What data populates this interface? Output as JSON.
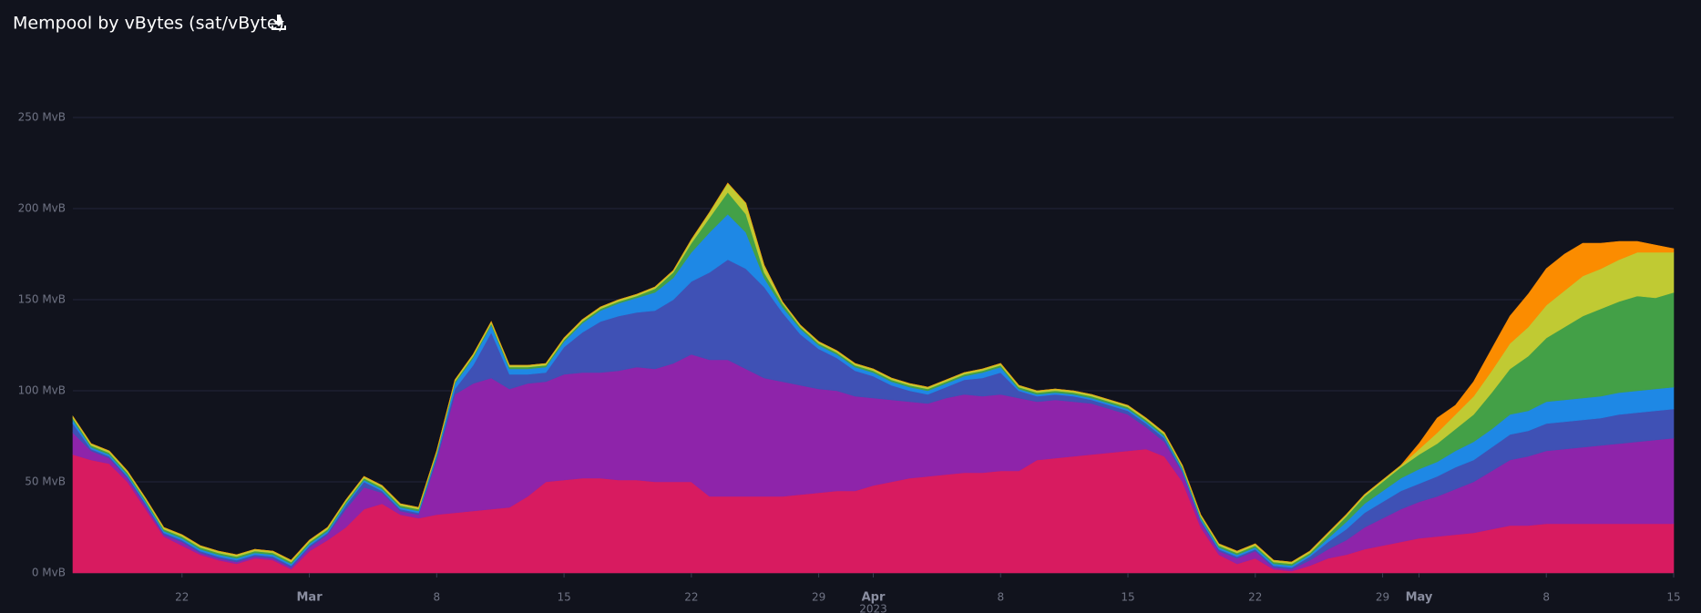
{
  "chart_data": {
    "type": "stacked_area",
    "title": "Mempool by vBytes (sat/vByte)",
    "x": [
      "2023-02-16",
      "2023-02-17",
      "2023-02-18",
      "2023-02-19",
      "2023-02-20",
      "2023-02-21",
      "2023-02-22",
      "2023-02-23",
      "2023-02-24",
      "2023-02-25",
      "2023-02-26",
      "2023-02-27",
      "2023-02-28",
      "2023-03-01",
      "2023-03-02",
      "2023-03-03",
      "2023-03-04",
      "2023-03-05",
      "2023-03-06",
      "2023-03-07",
      "2023-03-08",
      "2023-03-09",
      "2023-03-10",
      "2023-03-11",
      "2023-03-12",
      "2023-03-13",
      "2023-03-14",
      "2023-03-15",
      "2023-03-16",
      "2023-03-17",
      "2023-03-18",
      "2023-03-19",
      "2023-03-20",
      "2023-03-21",
      "2023-03-22",
      "2023-03-23",
      "2023-03-24",
      "2023-03-25",
      "2023-03-26",
      "2023-03-27",
      "2023-03-28",
      "2023-03-29",
      "2023-03-30",
      "2023-03-31",
      "2023-04-01",
      "2023-04-02",
      "2023-04-03",
      "2023-04-04",
      "2023-04-05",
      "2023-04-06",
      "2023-04-07",
      "2023-04-08",
      "2023-04-09",
      "2023-04-10",
      "2023-04-11",
      "2023-04-12",
      "2023-04-13",
      "2023-04-14",
      "2023-04-15",
      "2023-04-16",
      "2023-04-17",
      "2023-04-18",
      "2023-04-19",
      "2023-04-20",
      "2023-04-21",
      "2023-04-22",
      "2023-04-23",
      "2023-04-24",
      "2023-04-25",
      "2023-04-26",
      "2023-04-27",
      "2023-04-28",
      "2023-04-29",
      "2023-04-30",
      "2023-05-01",
      "2023-05-02",
      "2023-05-03",
      "2023-05-04",
      "2023-05-05",
      "2023-05-06",
      "2023-05-07",
      "2023-05-08",
      "2023-05-09",
      "2023-05-10",
      "2023-05-11",
      "2023-05-12",
      "2023-05-13",
      "2023-05-14",
      "2023-05-15"
    ],
    "series": [
      {
        "color": "#d81b60",
        "values": [
          65,
          62,
          60,
          50,
          35,
          20,
          15,
          10,
          7,
          5,
          8,
          7,
          2,
          12,
          18,
          25,
          35,
          38,
          32,
          30,
          32,
          33,
          34,
          35,
          36,
          42,
          50,
          51,
          52,
          52,
          51,
          51,
          50,
          50,
          50,
          42,
          42,
          42,
          42,
          42,
          43,
          44,
          45,
          45,
          48,
          50,
          52,
          53,
          54,
          55,
          55,
          56,
          56,
          62,
          63,
          64,
          65,
          66,
          67,
          68,
          64,
          50,
          25,
          10,
          5,
          8,
          2,
          1,
          4,
          8,
          10,
          13,
          15,
          17,
          19,
          20,
          21,
          22,
          24,
          26,
          26,
          27,
          27,
          27,
          27,
          27,
          27,
          27,
          27
        ]
      },
      {
        "color": "#8e24aa",
        "values": [
          12,
          5,
          3,
          2,
          2,
          1,
          2,
          1,
          1,
          1,
          1,
          1,
          1,
          2,
          3,
          10,
          12,
          6,
          2,
          2,
          30,
          65,
          70,
          72,
          65,
          62,
          55,
          58,
          58,
          58,
          60,
          62,
          62,
          65,
          70,
          75,
          75,
          70,
          65,
          63,
          60,
          57,
          55,
          52,
          48,
          45,
          42,
          40,
          42,
          43,
          42,
          42,
          40,
          32,
          32,
          30,
          28,
          24,
          20,
          12,
          8,
          5,
          3,
          2,
          3,
          4,
          1,
          1,
          3,
          5,
          8,
          12,
          15,
          18,
          20,
          22,
          25,
          28,
          32,
          36,
          38,
          40,
          41,
          42,
          43,
          44,
          45,
          46,
          47
        ]
      },
      {
        "color": "#3f51b5",
        "values": [
          5,
          1,
          1,
          1,
          1,
          1,
          1,
          1,
          1,
          1,
          1,
          1,
          1,
          1,
          1,
          2,
          3,
          1,
          1,
          1,
          2,
          3,
          10,
          25,
          8,
          5,
          5,
          15,
          22,
          28,
          30,
          30,
          32,
          35,
          40,
          48,
          55,
          55,
          50,
          38,
          28,
          22,
          18,
          14,
          12,
          8,
          6,
          5,
          6,
          8,
          10,
          12,
          4,
          3,
          3,
          3,
          2,
          2,
          2,
          2,
          2,
          1,
          1,
          1,
          1,
          1,
          1,
          1,
          2,
          4,
          6,
          8,
          9,
          10,
          10,
          11,
          12,
          12,
          13,
          14,
          14,
          15,
          15,
          15,
          15,
          16,
          16,
          16,
          16
        ]
      },
      {
        "color": "#1e88e5",
        "values": [
          2,
          1,
          1,
          1,
          1,
          1,
          1,
          1,
          1,
          1,
          1,
          1,
          1,
          1,
          1,
          1,
          1,
          1,
          1,
          1,
          1,
          3,
          4,
          4,
          3,
          3,
          3,
          3,
          5,
          6,
          7,
          8,
          10,
          12,
          16,
          22,
          25,
          20,
          5,
          3,
          3,
          2,
          2,
          2,
          2,
          2,
          2,
          2,
          2,
          2,
          3,
          3,
          1,
          1,
          1,
          1,
          1,
          1,
          1,
          1,
          1,
          1,
          1,
          1,
          1,
          1,
          1,
          1,
          1,
          2,
          4,
          5,
          6,
          7,
          8,
          8,
          9,
          10,
          10,
          11,
          11,
          12,
          12,
          12,
          12,
          12,
          12,
          12,
          12
        ]
      },
      {
        "color": "#43a047",
        "values": [
          1,
          1,
          1,
          1,
          1,
          1,
          1,
          1,
          1,
          1,
          1,
          1,
          1,
          1,
          1,
          1,
          1,
          1,
          1,
          1,
          1,
          1,
          1,
          1,
          1,
          1,
          1,
          1,
          1,
          1,
          1,
          1,
          2,
          3,
          5,
          8,
          12,
          10,
          3,
          2,
          1,
          1,
          1,
          1,
          1,
          1,
          1,
          1,
          1,
          1,
          1,
          1,
          1,
          1,
          1,
          1,
          1,
          1,
          1,
          1,
          1,
          1,
          1,
          1,
          1,
          1,
          1,
          1,
          1,
          2,
          3,
          4,
          5,
          6,
          8,
          10,
          12,
          15,
          20,
          25,
          30,
          35,
          40,
          45,
          48,
          50,
          52,
          50,
          52
        ]
      },
      {
        "color": "#c0ca33",
        "values": [
          1,
          1,
          1,
          1,
          1,
          1,
          1,
          1,
          1,
          1,
          1,
          1,
          1,
          1,
          1,
          1,
          1,
          1,
          1,
          1,
          1,
          1,
          1,
          1,
          1,
          1,
          1,
          1,
          1,
          1,
          1,
          1,
          1,
          1,
          2,
          3,
          5,
          6,
          4,
          1,
          1,
          1,
          1,
          1,
          1,
          1,
          1,
          1,
          1,
          1,
          1,
          1,
          1,
          1,
          1,
          1,
          1,
          1,
          1,
          1,
          1,
          1,
          1,
          1,
          1,
          1,
          1,
          1,
          1,
          1,
          1,
          1,
          1,
          1,
          3,
          6,
          8,
          10,
          12,
          14,
          16,
          18,
          20,
          22,
          22,
          23,
          24,
          25,
          22
        ]
      },
      {
        "color": "#fb8c00",
        "values": [
          0,
          0,
          0,
          0,
          0,
          0,
          0,
          0,
          0,
          0,
          0,
          0,
          0,
          0,
          0,
          0,
          0,
          0,
          0,
          0,
          0,
          0,
          0,
          0,
          0,
          0,
          0,
          0,
          0,
          0,
          0,
          0,
          0,
          0,
          0,
          0,
          0,
          0,
          0,
          0,
          0,
          0,
          0,
          0,
          0,
          0,
          0,
          0,
          0,
          0,
          0,
          0,
          0,
          0,
          0,
          0,
          0,
          0,
          0,
          0,
          0,
          0,
          0,
          0,
          0,
          0,
          0,
          0,
          0,
          0,
          0,
          0,
          0,
          0,
          3,
          8,
          5,
          8,
          12,
          15,
          18,
          20,
          20,
          18,
          14,
          10,
          6,
          4,
          2
        ]
      }
    ],
    "xlim": [
      "2023-02-16",
      "2023-05-15"
    ],
    "xticks": [
      {
        "value": "2023-02-22",
        "label": "22"
      },
      {
        "value": "2023-03-01",
        "label": "Mar"
      },
      {
        "value": "2023-03-08",
        "label": "8"
      },
      {
        "value": "2023-03-15",
        "label": "15"
      },
      {
        "value": "2023-03-22",
        "label": "22"
      },
      {
        "value": "2023-03-29",
        "label": "29"
      },
      {
        "value": "2023-04-01",
        "label": "Apr"
      },
      {
        "value": "2023-04-08",
        "label": "8"
      },
      {
        "value": "2023-04-15",
        "label": "15"
      },
      {
        "value": "2023-04-22",
        "label": "22"
      },
      {
        "value": "2023-04-29",
        "label": "29"
      },
      {
        "value": "2023-05-01",
        "label": "May"
      },
      {
        "value": "2023-05-08",
        "label": "8"
      },
      {
        "value": "2023-05-15",
        "label": "15"
      }
    ],
    "annotations": [
      {
        "text": "2023",
        "x": "2023-04-01"
      }
    ],
    "ylim": [
      0,
      250
    ],
    "yticks": [
      {
        "value": 0,
        "label": "0 MvB"
      },
      {
        "value": 50,
        "label": "50 MvB"
      },
      {
        "value": 100,
        "label": "100 MvB"
      },
      {
        "value": 150,
        "label": "150 MvB"
      },
      {
        "value": 200,
        "label": "200 MvB"
      },
      {
        "value": 250,
        "label": "250 MvB"
      }
    ],
    "grid": true
  }
}
